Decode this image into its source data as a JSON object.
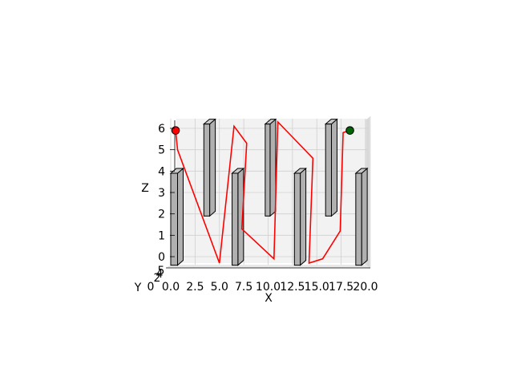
{
  "chart_data": {
    "type": "3d-line-with-obstacles",
    "title": "",
    "xlabel": "X",
    "ylabel": "Y",
    "zlabel": "Z",
    "xlim": [
      0,
      20
    ],
    "zlim": [
      0,
      6.5
    ],
    "x_ticks": [
      "0.0",
      "2.5",
      "5.0",
      "7.5",
      "10.0",
      "12.5",
      "15.0",
      "17.5",
      "20.0"
    ],
    "z_ticks": [
      "0",
      "1",
      "2",
      "3",
      "4",
      "5",
      "6"
    ],
    "y_ticks_visible": [
      "0",
      "2",
      "4",
      "5"
    ],
    "grid": true,
    "path_color": "#ff0000",
    "obstacle_color": "#b0b0b0",
    "path": [
      {
        "x": 0.5,
        "z": 5.9
      },
      {
        "x": 0.7,
        "z": 5.0
      },
      {
        "x": 5.0,
        "z": -0.3
      },
      {
        "x": 6.5,
        "z": 6.1
      },
      {
        "x": 7.8,
        "z": 5.3
      },
      {
        "x": 7.3,
        "z": 1.3
      },
      {
        "x": 10.6,
        "z": -0.1
      },
      {
        "x": 11.0,
        "z": 6.3
      },
      {
        "x": 14.6,
        "z": 4.6
      },
      {
        "x": 14.2,
        "z": -0.3
      },
      {
        "x": 15.6,
        "z": -0.1
      },
      {
        "x": 17.4,
        "z": 1.2
      },
      {
        "x": 17.7,
        "z": 5.8
      },
      {
        "x": 18.4,
        "z": 5.9
      }
    ],
    "start": {
      "x": 0.5,
      "z": 5.9,
      "color": "#ff0000"
    },
    "goal": {
      "x": 18.4,
      "z": 5.9,
      "color": "#006400"
    },
    "obstacles": [
      {
        "x0": 0.0,
        "x1": 0.7,
        "z0": -0.4,
        "z1": 3.9
      },
      {
        "x0": 3.4,
        "x1": 4.0,
        "z0": 1.9,
        "z1": 6.2
      },
      {
        "x0": 6.3,
        "x1": 6.9,
        "z0": -0.4,
        "z1": 3.9
      },
      {
        "x0": 9.7,
        "x1": 10.2,
        "z0": 1.9,
        "z1": 6.2
      },
      {
        "x0": 12.7,
        "x1": 13.3,
        "z0": -0.4,
        "z1": 3.9
      },
      {
        "x0": 15.9,
        "x1": 16.5,
        "z0": 1.9,
        "z1": 6.2
      },
      {
        "x0": 19.0,
        "x1": 19.6,
        "z0": -0.4,
        "z1": 3.9
      }
    ]
  }
}
